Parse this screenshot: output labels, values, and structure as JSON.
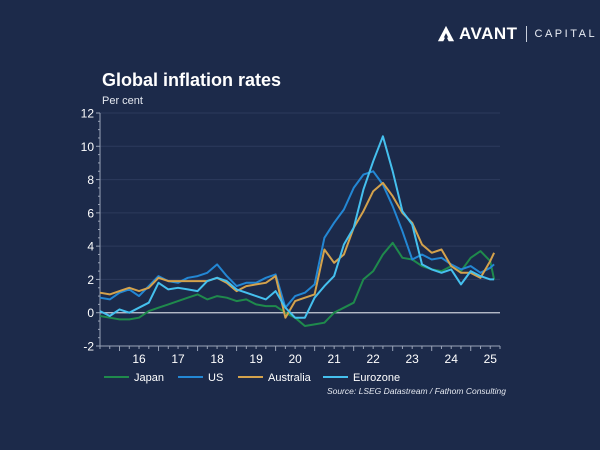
{
  "brand": {
    "name": "AVANT",
    "sub": "CAPITAL",
    "logo_icon": "avant-logo-mark"
  },
  "header": {
    "title": "Global inflation rates",
    "subtitle": "Per cent"
  },
  "source": "Source: LSEG Datastream / Fathom Consulting",
  "colors": {
    "background": "#1c2a4a",
    "Japan": "#1f8a4c",
    "US": "#2387d4",
    "Australia": "#d4a24c",
    "Eurozone": "#45c0ee",
    "zero_line": "#c8cdd8",
    "grid": "#2c3b5c",
    "axis": "#9aa4b8"
  },
  "chart_data": {
    "type": "line",
    "title": "Global inflation rates",
    "ylabel": "Per cent",
    "xlabel": "",
    "ylim": [
      -2,
      12
    ],
    "yticks": [
      -2,
      0,
      2,
      4,
      6,
      8,
      10,
      12
    ],
    "xlim": [
      2015.5,
      2025.75
    ],
    "xticks": [
      "16",
      "17",
      "18",
      "19",
      "20",
      "21",
      "22",
      "23",
      "24",
      "25"
    ],
    "grid": true,
    "legend": "bottom",
    "x": [
      2015.5,
      2015.75,
      2016.0,
      2016.25,
      2016.5,
      2016.75,
      2017.0,
      2017.25,
      2017.5,
      2017.75,
      2018.0,
      2018.25,
      2018.5,
      2018.75,
      2019.0,
      2019.25,
      2019.5,
      2019.75,
      2020.0,
      2020.25,
      2020.5,
      2020.75,
      2021.0,
      2021.25,
      2021.5,
      2021.75,
      2022.0,
      2022.25,
      2022.5,
      2022.75,
      2023.0,
      2023.25,
      2023.5,
      2023.75,
      2024.0,
      2024.25,
      2024.5,
      2024.75,
      2025.0,
      2025.25,
      2025.5,
      2025.6
    ],
    "series": [
      {
        "name": "Japan",
        "values": [
          -0.2,
          -0.3,
          -0.4,
          -0.4,
          -0.3,
          0.1,
          0.3,
          0.5,
          0.7,
          0.9,
          1.1,
          0.8,
          1.0,
          0.9,
          0.7,
          0.8,
          0.5,
          0.4,
          0.4,
          0.0,
          -0.3,
          -0.8,
          -0.7,
          -0.6,
          0.0,
          0.3,
          0.6,
          2.0,
          2.5,
          3.5,
          4.2,
          3.3,
          3.2,
          2.8,
          2.6,
          2.5,
          2.8,
          2.5,
          3.3,
          3.7,
          3.1,
          2.0
        ]
      },
      {
        "name": "US",
        "values": [
          0.9,
          0.8,
          1.2,
          1.4,
          1.0,
          1.6,
          2.2,
          1.9,
          1.8,
          2.1,
          2.2,
          2.4,
          2.9,
          2.2,
          1.6,
          1.8,
          1.8,
          2.1,
          2.3,
          0.3,
          1.0,
          1.2,
          1.7,
          4.5,
          5.4,
          6.2,
          7.5,
          8.3,
          8.5,
          7.7,
          6.4,
          4.9,
          3.2,
          3.5,
          3.2,
          3.3,
          2.9,
          2.6,
          2.8,
          2.4,
          2.7,
          2.9
        ]
      },
      {
        "name": "Australia",
        "values": [
          1.2,
          1.1,
          1.3,
          1.5,
          1.3,
          1.5,
          2.1,
          1.9,
          1.9,
          1.9,
          1.9,
          1.9,
          2.1,
          1.8,
          1.3,
          1.6,
          1.7,
          1.8,
          2.2,
          -0.3,
          0.7,
          0.9,
          1.1,
          3.8,
          3.0,
          3.5,
          5.1,
          6.1,
          7.3,
          7.8,
          7.0,
          6.0,
          5.4,
          4.1,
          3.6,
          3.8,
          2.8,
          2.4,
          2.4,
          2.1,
          3.1,
          3.6
        ]
      },
      {
        "name": "Eurozone",
        "values": [
          0.1,
          -0.2,
          0.2,
          0.0,
          0.3,
          0.6,
          1.8,
          1.4,
          1.5,
          1.4,
          1.3,
          1.9,
          2.1,
          1.9,
          1.4,
          1.2,
          1.0,
          0.8,
          1.3,
          0.3,
          -0.3,
          -0.3,
          0.9,
          1.6,
          2.2,
          4.1,
          5.1,
          7.4,
          9.1,
          10.6,
          8.5,
          6.1,
          5.3,
          2.9,
          2.6,
          2.4,
          2.6,
          1.7,
          2.5,
          2.2,
          2.0,
          2.0
        ]
      }
    ]
  },
  "legend": [
    {
      "name": "Japan"
    },
    {
      "name": "US"
    },
    {
      "name": "Australia"
    },
    {
      "name": "Eurozone"
    }
  ]
}
